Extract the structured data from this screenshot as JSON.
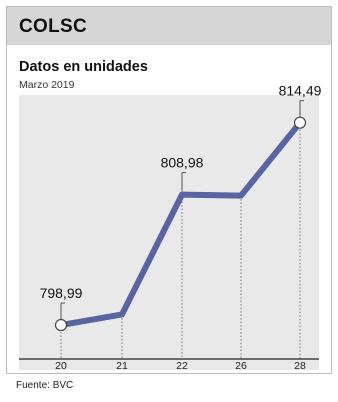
{
  "header": {
    "title": "COLSC"
  },
  "subtitle": "Datos en unidades",
  "period": "Marzo 2019",
  "footer": "Fuente: BVC",
  "colors": {
    "line": "#5865a0",
    "plot_bg": "#e9e9e9",
    "header_bg": "#d6d6d6"
  },
  "chart_data": {
    "type": "line",
    "categories": [
      "20",
      "21",
      "22",
      "26",
      "28"
    ],
    "values": [
      798.99,
      799.8,
      808.98,
      808.9,
      814.49
    ],
    "data_labels": [
      {
        "index": 0,
        "text": "798,99"
      },
      {
        "index": 2,
        "text": "808,98"
      },
      {
        "index": 4,
        "text": "814,49"
      }
    ],
    "markers_at": [
      0,
      4
    ],
    "ylim": [
      797,
      816
    ],
    "grid": "vertical-dotted",
    "legend": "none"
  }
}
